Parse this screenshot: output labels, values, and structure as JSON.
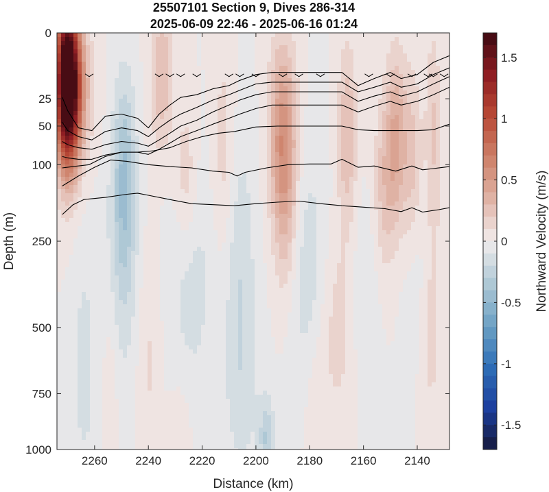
{
  "chart_data": {
    "type": "heatmap",
    "title": "25507101 Section 9, Dives 286-314",
    "subtitle": "2025-06-09 22:46 - 2025-06-16 01:24",
    "xlabel": "Distance (km)",
    "ylabel": "Depth (m)",
    "colorbar_label": "Northward Velocity (m/s)",
    "xlim": [
      2274,
      2128
    ],
    "x_reversed": true,
    "x_ticks": [
      2260,
      2240,
      2220,
      2200,
      2180,
      2160,
      2140
    ],
    "x_tick_labels": [
      "2260",
      "2240",
      "2220",
      "2200",
      "2180",
      "2160",
      "2140"
    ],
    "y_scale": "sqrt",
    "ylim": [
      0,
      1000
    ],
    "y_reversed": true,
    "y_ticks": [
      0,
      25,
      50,
      100,
      250,
      500,
      750,
      1000
    ],
    "y_tick_labels": [
      "0",
      "25",
      "50",
      "100",
      "250",
      "500",
      "750",
      "1000"
    ],
    "clim": [
      -1.7,
      1.7
    ],
    "colorbar_ticks": [
      1.5,
      1,
      0.5,
      0,
      -0.5,
      -1,
      -1.5
    ],
    "colorbar_tick_labels": [
      "1.5",
      "1",
      "0.5",
      "0",
      "-0.5",
      "-1",
      "-1.5"
    ],
    "colormap": "diverging blue-white-red (balance)",
    "colormap_colors": [
      "#161a3c",
      "#1c3f9e",
      "#2f6fb7",
      "#6ea2c4",
      "#b0c9d6",
      "#f1ecec",
      "#e0b3a6",
      "#cd8169",
      "#b94a36",
      "#8e1d22",
      "#3c0912"
    ],
    "grid": false,
    "contour_color": "#000000",
    "contours": [
      {
        "x": [
          2272,
          2270,
          2266,
          2261,
          2256,
          2250,
          2244,
          2240,
          2236,
          2232,
          2228,
          2222,
          2216,
          2210,
          2206,
          2200,
          2194,
          2186,
          2176,
          2168,
          2162,
          2156,
          2150,
          2146,
          2140,
          2134,
          2128
        ],
        "depth": [
          24,
          35,
          52,
          55,
          40,
          38,
          42,
          52,
          38,
          30,
          24,
          22,
          18,
          16,
          13,
          10,
          9,
          9,
          9,
          9,
          16,
          12,
          9,
          12,
          10,
          5,
          3
        ]
      },
      {
        "x": [
          2272,
          2270,
          2266,
          2261,
          2256,
          2250,
          2244,
          2240,
          2236,
          2232,
          2228,
          2222,
          2216,
          2210,
          2206,
          2200,
          2194,
          2186,
          2176,
          2168,
          2162,
          2156,
          2150,
          2146,
          2140,
          2134,
          2128
        ],
        "depth": [
          46,
          55,
          62,
          66,
          56,
          52,
          55,
          62,
          52,
          44,
          38,
          32,
          26,
          22,
          19,
          15,
          14,
          14,
          14,
          14,
          20,
          17,
          14,
          17,
          15,
          10,
          7
        ]
      },
      {
        "x": [
          2272,
          2270,
          2266,
          2261,
          2256,
          2250,
          2244,
          2240,
          2236,
          2232,
          2228,
          2222,
          2216,
          2210,
          2206,
          2200,
          2194,
          2186,
          2176,
          2168,
          2162,
          2156,
          2150,
          2146,
          2140,
          2134,
          2128
        ],
        "depth": [
          68,
          72,
          76,
          78,
          72,
          68,
          70,
          74,
          66,
          58,
          50,
          44,
          36,
          30,
          26,
          22,
          20,
          20,
          20,
          20,
          27,
          23,
          20,
          23,
          20,
          15,
          11
        ]
      },
      {
        "x": [
          2272,
          2270,
          2266,
          2261,
          2256,
          2250,
          2244,
          2240,
          2236,
          2232,
          2228,
          2222,
          2216,
          2210,
          2206,
          2200,
          2194,
          2186,
          2176,
          2168,
          2162,
          2156,
          2150,
          2146,
          2140,
          2134,
          2128
        ],
        "depth": [
          88,
          90,
          92,
          92,
          86,
          82,
          82,
          85,
          78,
          70,
          62,
          55,
          48,
          42,
          38,
          33,
          30,
          30,
          30,
          30,
          36,
          31,
          27,
          30,
          27,
          22,
          17
        ]
      },
      {
        "x": [
          2272,
          2268,
          2262,
          2256,
          2250,
          2244,
          2238,
          2232,
          2226,
          2220,
          2214,
          2208,
          2200,
          2192,
          2184,
          2176,
          2168,
          2162,
          2156,
          2148,
          2140,
          2134,
          2128
        ],
        "depth": [
          105,
          103,
          100,
          88,
          82,
          82,
          80,
          76,
          68,
          62,
          58,
          56,
          51,
          50,
          50,
          50,
          50,
          54,
          55,
          55,
          55,
          54,
          48
        ]
      },
      {
        "x": [
          2272,
          2266,
          2260,
          2254,
          2248,
          2240,
          2232,
          2224,
          2216,
          2210,
          2207,
          2204,
          2196,
          2188,
          2180,
          2172,
          2168,
          2162,
          2156,
          2148,
          2142,
          2138,
          2134,
          2128
        ],
        "depth": [
          135,
          118,
          104,
          93,
          95,
          100,
          103,
          105,
          110,
          112,
          118,
          112,
          105,
          100,
          99,
          99,
          92,
          104,
          102,
          110,
          102,
          108,
          106,
          103
        ]
      },
      {
        "x": [
          2272,
          2268,
          2264,
          2256,
          2248,
          2244,
          2240,
          2232,
          2224,
          2216,
          2208,
          2200,
          2192,
          2184,
          2176,
          2168,
          2160,
          2152,
          2146,
          2142,
          2138,
          2132,
          2128
        ],
        "depth": [
          190,
          170,
          160,
          156,
          150,
          148,
          152,
          160,
          168,
          170,
          172,
          168,
          165,
          163,
          168,
          172,
          175,
          178,
          184,
          176,
          185,
          180,
          176
        ]
      }
    ],
    "tick_markers_depth": 10,
    "tick_markers_x": [
      2262,
      2236,
      2232,
      2228,
      2222,
      2210,
      2206,
      2200,
      2190,
      2184,
      2176,
      2158,
      2150,
      2142,
      2136,
      2134,
      2130
    ],
    "velocity_features": [
      {
        "x": 2270,
        "depth": 8,
        "value": 1.7,
        "wx": 3,
        "wd": 25
      },
      {
        "x": 2270,
        "depth": 40,
        "value": 0.85,
        "wx": 3,
        "wd": 45
      },
      {
        "x": 2265,
        "depth": 20,
        "value": 0.25,
        "wx": 4,
        "wd": 30
      },
      {
        "x": 2249,
        "depth": 120,
        "value": -0.38,
        "wx": 3,
        "wd": 120
      },
      {
        "x": 2250,
        "depth": 350,
        "value": -0.14,
        "wx": 5,
        "wd": 250
      },
      {
        "x": 2254,
        "depth": 700,
        "value": 0.1,
        "wx": 2,
        "wd": 300
      },
      {
        "x": 2235,
        "depth": 10,
        "value": 0.3,
        "wx": 3,
        "wd": 30
      },
      {
        "x": 2226,
        "depth": 120,
        "value": 0.2,
        "wx": 3,
        "wd": 80
      },
      {
        "x": 2224,
        "depth": 350,
        "value": -0.15,
        "wx": 6,
        "wd": 250
      },
      {
        "x": 2212,
        "depth": 80,
        "value": 0.16,
        "wx": 3,
        "wd": 120
      },
      {
        "x": 2206,
        "depth": 300,
        "value": -0.18,
        "wx": 4,
        "wd": 250
      },
      {
        "x": 2205,
        "depth": 750,
        "value": -0.12,
        "wx": 5,
        "wd": 250
      },
      {
        "x": 2190,
        "depth": 60,
        "value": 0.55,
        "wx": 3.5,
        "wd": 80
      },
      {
        "x": 2189,
        "depth": 200,
        "value": 0.18,
        "wx": 3,
        "wd": 120
      },
      {
        "x": 2180,
        "depth": 350,
        "value": -0.18,
        "wx": 5,
        "wd": 250
      },
      {
        "x": 2178,
        "depth": 800,
        "value": 0.1,
        "wx": 3,
        "wd": 250
      },
      {
        "x": 2166,
        "depth": 60,
        "value": 0.3,
        "wx": 2.5,
        "wd": 80
      },
      {
        "x": 2170,
        "depth": 500,
        "value": 0.16,
        "wx": 5,
        "wd": 220
      },
      {
        "x": 2152,
        "depth": 130,
        "value": 0.25,
        "wx": 3,
        "wd": 100
      },
      {
        "x": 2148,
        "depth": 60,
        "value": 0.35,
        "wx": 2.5,
        "wd": 70
      },
      {
        "x": 2142,
        "depth": 100,
        "value": 0.3,
        "wx": 3,
        "wd": 100
      },
      {
        "x": 2134,
        "depth": 60,
        "value": 0.22,
        "wx": 2,
        "wd": 100
      },
      {
        "x": 2140,
        "depth": 250,
        "value": -0.12,
        "wx": 4,
        "wd": 200
      },
      {
        "x": 2135,
        "depth": 500,
        "value": 0.15,
        "wx": 3,
        "wd": 250
      },
      {
        "x": 2264,
        "depth": 650,
        "value": -0.15,
        "wx": 3,
        "wd": 300
      },
      {
        "x": 2240,
        "depth": 600,
        "value": 0.12,
        "wx": 3,
        "wd": 300
      },
      {
        "x": 2228,
        "depth": 900,
        "value": 0.08,
        "wx": 3,
        "wd": 150
      },
      {
        "x": 2196,
        "depth": 950,
        "value": -0.3,
        "wx": 2,
        "wd": 80
      },
      {
        "x": 2160,
        "depth": 400,
        "value": -0.1,
        "wx": 4,
        "wd": 200
      }
    ]
  }
}
